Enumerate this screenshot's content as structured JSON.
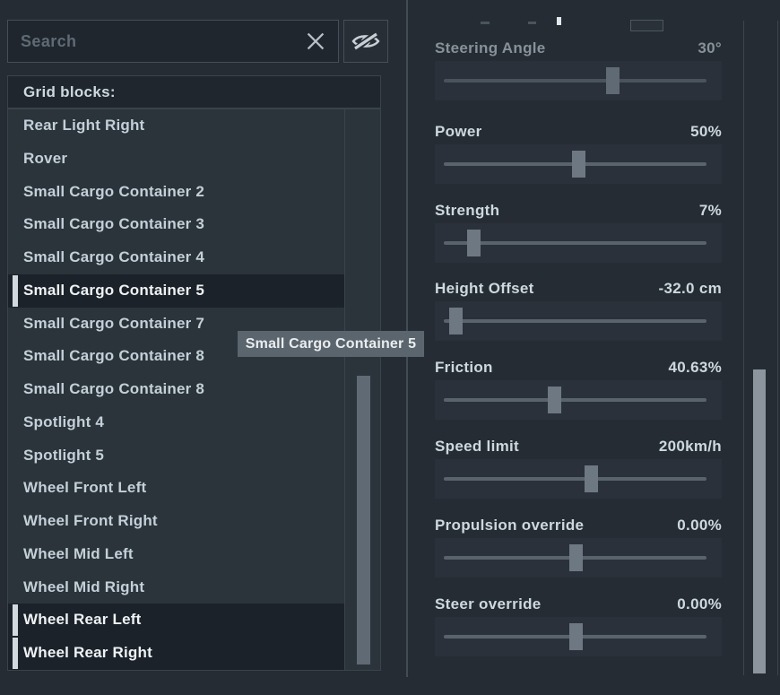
{
  "search": {
    "placeholder": "Search"
  },
  "list": {
    "header": "Grid blocks:",
    "items": [
      {
        "label": "Rear Light Right",
        "selected": false
      },
      {
        "label": "Rover",
        "selected": false
      },
      {
        "label": "Small Cargo Container 2",
        "selected": false
      },
      {
        "label": "Small Cargo Container 3",
        "selected": false
      },
      {
        "label": "Small Cargo Container 4",
        "selected": false
      },
      {
        "label": "Small Cargo Container 5",
        "selected": true
      },
      {
        "label": "Small Cargo Container 7",
        "selected": false
      },
      {
        "label": "Small Cargo Container 8",
        "selected": false
      },
      {
        "label": "Small Cargo Container 8",
        "selected": false
      },
      {
        "label": "Spotlight 4",
        "selected": false
      },
      {
        "label": "Spotlight 5",
        "selected": false
      },
      {
        "label": "Wheel Front Left",
        "selected": false
      },
      {
        "label": "Wheel Front Right",
        "selected": false
      },
      {
        "label": "Wheel Mid Left",
        "selected": false
      },
      {
        "label": "Wheel Mid Right",
        "selected": false
      },
      {
        "label": "Wheel Rear Left",
        "selected": true
      },
      {
        "label": "Wheel Rear Right",
        "selected": true
      }
    ]
  },
  "tooltip": {
    "text": "Small Cargo Container 5"
  },
  "controls": {
    "sliders": [
      {
        "label": "Steering Angle",
        "value": "30°",
        "fraction": 0.645,
        "dimmed": true
      },
      {
        "label": "Power",
        "value": "50%",
        "fraction": 0.515,
        "dimmed": false
      },
      {
        "label": "Strength",
        "value": "7%",
        "fraction": 0.113,
        "dimmed": false
      },
      {
        "label": "Height Offset",
        "value": "-32.0 cm",
        "fraction": 0.045,
        "dimmed": false
      },
      {
        "label": "Friction",
        "value": "40.63%",
        "fraction": 0.42,
        "dimmed": false
      },
      {
        "label": "Speed limit",
        "value": "200km/h",
        "fraction": 0.56,
        "dimmed": false
      },
      {
        "label": "Propulsion override",
        "value": "0.00%",
        "fraction": 0.505,
        "dimmed": false
      },
      {
        "label": "Steer override",
        "value": "0.00%",
        "fraction": 0.505,
        "dimmed": false
      }
    ]
  },
  "icons": {
    "clear_search": "x-icon",
    "hide_blocks": "eye-slash-icon"
  },
  "colors": {
    "bg": "#262c33",
    "panel": "#20262d",
    "list-bg": "#2b333b",
    "selected-bg": "#1b222a",
    "accent-bar": "#d3dade",
    "border": "#3a434c",
    "border-bright": "#454f59",
    "text": "#c3d0d7",
    "text-bright": "#ccd9de",
    "text-bright2": "#eef2f4",
    "text-dim": "#87919a",
    "text-dim2": "#5f6a74",
    "slider-bg": "#2a313a",
    "track": "#59636c",
    "thumb": "#5f6a74",
    "thumb2": "#6e7883",
    "thumb-light": "#8c949d",
    "tooltip-bg": "#5b656d"
  }
}
